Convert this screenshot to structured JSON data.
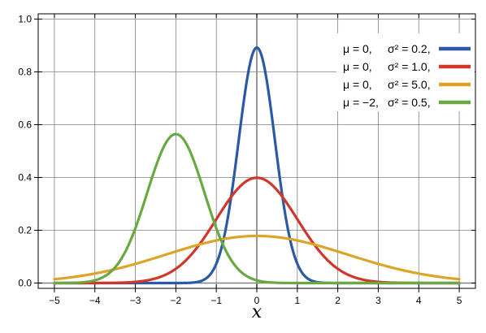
{
  "colors": {
    "background": "#ffffff",
    "grid": "#808080",
    "axis": "#000000",
    "zero_line": "#808080",
    "series_1": "#2a5aa5",
    "series_2": "#d1362a",
    "series_3": "#dda428",
    "series_4": "#6aa842"
  },
  "chart_data": {
    "type": "line",
    "title": "",
    "xlabel": "x",
    "ylabel": "",
    "xlim": [
      -5.4,
      5.4
    ],
    "ylim": [
      -0.02,
      1.02
    ],
    "grid": true,
    "legend_position": "top-right",
    "x_ticks": [
      -5,
      -4,
      -3,
      -2,
      -1,
      0,
      1,
      2,
      3,
      4,
      5
    ],
    "x_tick_labels": [
      "−5",
      "−4",
      "−3",
      "−2",
      "−1",
      "0",
      "1",
      "2",
      "3",
      "4",
      "5"
    ],
    "y_ticks": [
      0.0,
      0.2,
      0.4,
      0.6,
      0.8,
      1.0
    ],
    "y_tick_labels": [
      "0.0",
      "0.2",
      "0.4",
      "0.6",
      "0.8",
      "1.0"
    ],
    "function": "normal probability density",
    "x_range": [
      -5,
      5
    ],
    "series": [
      {
        "mu": 0,
        "sigma2": 0.2,
        "legend_mu": "μ = 0,",
        "legend_sigma": "σ² = 0.2,",
        "color": "#2a5aa5",
        "x": [
          -1.5,
          -1.25,
          -1.0,
          -0.75,
          -0.5,
          -0.25,
          0,
          0.25,
          0.5,
          0.75,
          1.0,
          1.25,
          1.5
        ],
        "y": [
          0.003,
          0.019,
          0.073,
          0.217,
          0.479,
          0.761,
          0.892,
          0.761,
          0.479,
          0.217,
          0.073,
          0.019,
          0.003
        ]
      },
      {
        "mu": 0,
        "sigma2": 1.0,
        "legend_mu": "μ = 0,",
        "legend_sigma": "σ² = 1.0,",
        "color": "#d1362a",
        "x": [
          -4,
          -3,
          -2,
          -1.5,
          -1,
          -0.5,
          0,
          0.5,
          1,
          1.5,
          2,
          3,
          4
        ],
        "y": [
          0.0,
          0.004,
          0.054,
          0.13,
          0.242,
          0.352,
          0.399,
          0.352,
          0.242,
          0.13,
          0.054,
          0.004,
          0.0
        ]
      },
      {
        "mu": 0,
        "sigma2": 5.0,
        "legend_mu": "μ = 0,",
        "legend_sigma": "σ² = 5.0,",
        "color": "#dda428",
        "x": [
          -5,
          -4,
          -3,
          -2,
          -1,
          0,
          1,
          2,
          3,
          4,
          5
        ],
        "y": [
          0.015,
          0.036,
          0.073,
          0.12,
          0.161,
          0.178,
          0.161,
          0.12,
          0.073,
          0.036,
          0.015
        ]
      },
      {
        "mu": -2,
        "sigma2": 0.5,
        "legend_mu": "μ = −2,",
        "legend_sigma": "σ² = 0.5,",
        "color": "#6aa842",
        "x": [
          -5,
          -4,
          -3.5,
          -3,
          -2.5,
          -2,
          -1.5,
          -1,
          -0.5,
          0,
          1
        ],
        "y": [
          0.0,
          0.01,
          0.059,
          0.208,
          0.44,
          0.564,
          0.44,
          0.208,
          0.059,
          0.01,
          0.0
        ]
      }
    ]
  }
}
